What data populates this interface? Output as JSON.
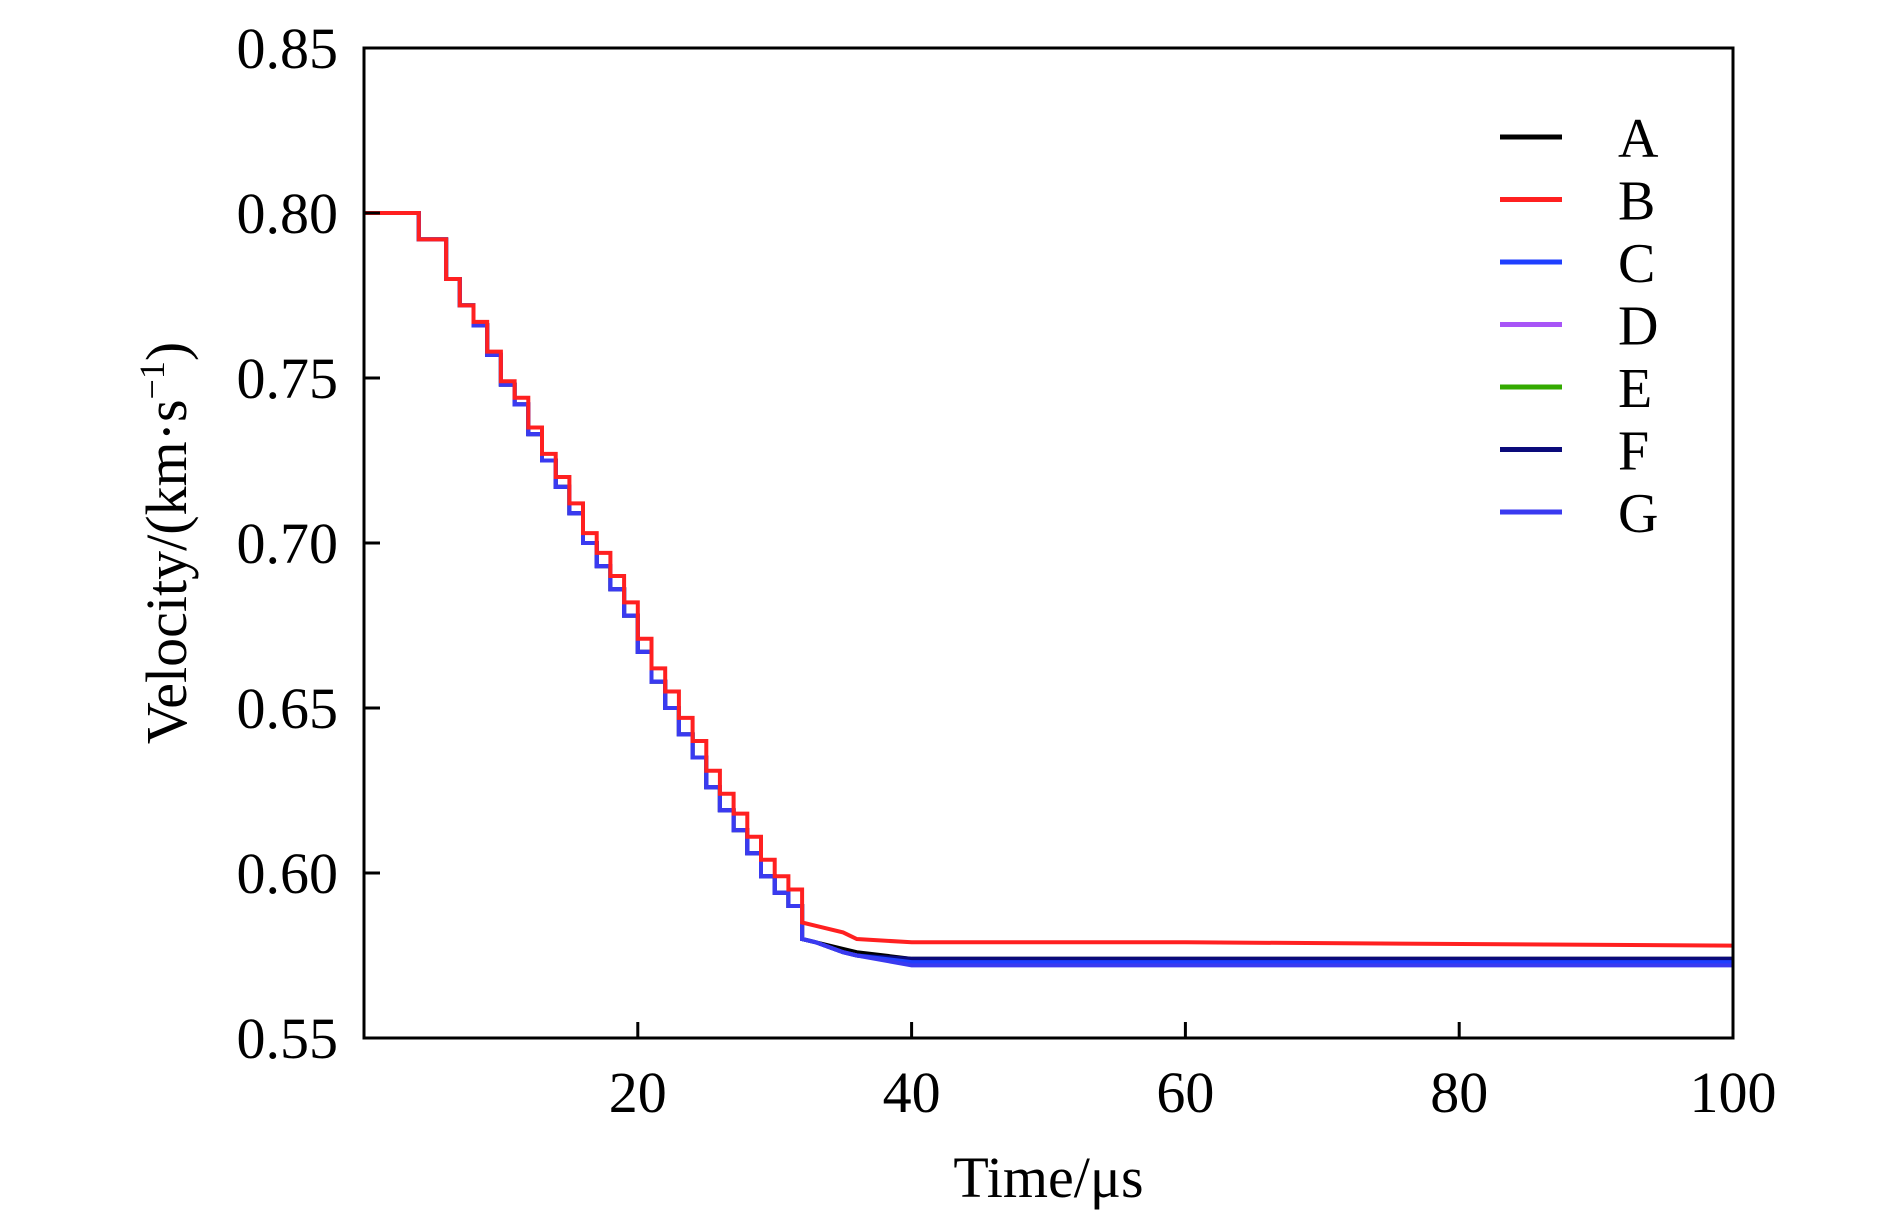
{
  "chart_data": {
    "type": "line",
    "title": "",
    "xlabel": "Time/μs",
    "ylabel": "Velocity/(km·s",
    "ylabel_superscript": "−1",
    "ylabel_close": ")",
    "xlim": [
      0,
      100
    ],
    "ylim": [
      0.55,
      0.85
    ],
    "xticks": [
      20,
      40,
      60,
      80,
      100
    ],
    "xtick_labels": [
      "20",
      "40",
      "60",
      "80",
      "100"
    ],
    "yticks": [
      0.55,
      0.6,
      0.65,
      0.7,
      0.75,
      0.8,
      0.85
    ],
    "ytick_labels": [
      "0.55",
      "0.60",
      "0.65",
      "0.70",
      "0.75",
      "0.80",
      "0.85"
    ],
    "grid": false,
    "legend_position": "top-right",
    "series": [
      {
        "name": "A",
        "color": "#000000",
        "x": [
          0,
          4,
          4,
          6,
          6,
          7,
          7,
          8,
          8,
          9,
          9,
          10,
          10,
          11,
          11,
          12,
          12,
          13,
          13,
          14,
          14,
          15,
          15,
          16,
          16,
          17,
          17,
          18,
          18,
          19,
          19,
          20,
          20,
          21,
          21,
          22,
          22,
          23,
          23,
          24,
          24,
          25,
          25,
          26,
          26,
          27,
          27,
          28,
          28,
          29,
          29,
          30,
          30,
          31,
          31,
          32,
          32,
          33,
          35,
          36,
          40,
          60,
          100
        ],
        "y": [
          0.8,
          0.8,
          0.792,
          0.792,
          0.78,
          0.78,
          0.772,
          0.772,
          0.766,
          0.766,
          0.757,
          0.757,
          0.748,
          0.748,
          0.742,
          0.742,
          0.733,
          0.733,
          0.725,
          0.725,
          0.717,
          0.717,
          0.709,
          0.709,
          0.7,
          0.7,
          0.693,
          0.693,
          0.686,
          0.686,
          0.678,
          0.678,
          0.667,
          0.667,
          0.658,
          0.658,
          0.65,
          0.65,
          0.642,
          0.642,
          0.635,
          0.635,
          0.626,
          0.626,
          0.619,
          0.619,
          0.613,
          0.613,
          0.606,
          0.606,
          0.599,
          0.599,
          0.594,
          0.594,
          0.59,
          0.59,
          0.58,
          0.579,
          0.577,
          0.576,
          0.574,
          0.574,
          0.574
        ]
      },
      {
        "name": "B",
        "color": "#ff2020",
        "x": [
          0,
          4,
          4,
          6,
          6,
          7,
          7,
          8,
          8,
          9,
          9,
          10,
          10,
          11,
          11,
          12,
          12,
          13,
          13,
          14,
          14,
          15,
          15,
          16,
          16,
          17,
          17,
          18,
          18,
          19,
          19,
          20,
          20,
          21,
          21,
          22,
          22,
          23,
          23,
          24,
          24,
          25,
          25,
          26,
          26,
          27,
          27,
          28,
          28,
          29,
          29,
          30,
          30,
          31,
          31,
          32,
          32,
          33,
          35,
          36,
          40,
          60,
          100
        ],
        "y": [
          0.8,
          0.8,
          0.792,
          0.792,
          0.78,
          0.78,
          0.772,
          0.772,
          0.767,
          0.767,
          0.758,
          0.758,
          0.749,
          0.749,
          0.744,
          0.744,
          0.735,
          0.735,
          0.727,
          0.727,
          0.72,
          0.72,
          0.712,
          0.712,
          0.703,
          0.703,
          0.697,
          0.697,
          0.69,
          0.69,
          0.682,
          0.682,
          0.671,
          0.671,
          0.662,
          0.662,
          0.655,
          0.655,
          0.647,
          0.647,
          0.64,
          0.64,
          0.631,
          0.631,
          0.624,
          0.624,
          0.618,
          0.618,
          0.611,
          0.611,
          0.604,
          0.604,
          0.599,
          0.599,
          0.595,
          0.595,
          0.585,
          0.584,
          0.582,
          0.58,
          0.579,
          0.579,
          0.578
        ]
      },
      {
        "name": "C",
        "color": "#1f3fff",
        "x": [
          0,
          4,
          4,
          6,
          6,
          7,
          7,
          8,
          8,
          9,
          9,
          10,
          10,
          11,
          11,
          12,
          12,
          13,
          13,
          14,
          14,
          15,
          15,
          16,
          16,
          17,
          17,
          18,
          18,
          19,
          19,
          20,
          20,
          21,
          21,
          22,
          22,
          23,
          23,
          24,
          24,
          25,
          25,
          26,
          26,
          27,
          27,
          28,
          28,
          29,
          29,
          30,
          30,
          31,
          31,
          32,
          32,
          33,
          35,
          36,
          40,
          60,
          100
        ],
        "y": [
          0.8,
          0.8,
          0.792,
          0.792,
          0.78,
          0.78,
          0.772,
          0.772,
          0.766,
          0.766,
          0.757,
          0.757,
          0.748,
          0.748,
          0.742,
          0.742,
          0.733,
          0.733,
          0.725,
          0.725,
          0.717,
          0.717,
          0.709,
          0.709,
          0.7,
          0.7,
          0.693,
          0.693,
          0.686,
          0.686,
          0.678,
          0.678,
          0.667,
          0.667,
          0.658,
          0.658,
          0.65,
          0.65,
          0.642,
          0.642,
          0.635,
          0.635,
          0.626,
          0.626,
          0.619,
          0.619,
          0.613,
          0.613,
          0.606,
          0.606,
          0.599,
          0.599,
          0.594,
          0.594,
          0.59,
          0.59,
          0.58,
          0.579,
          0.576,
          0.575,
          0.573,
          0.573,
          0.573
        ]
      },
      {
        "name": "D",
        "color": "#a855f7",
        "x": [
          0,
          4,
          4,
          6,
          6,
          7,
          7,
          8,
          8,
          9,
          9,
          10,
          10,
          11,
          11,
          12,
          12,
          13,
          13,
          14,
          14,
          15,
          15,
          16,
          16,
          17,
          17,
          18,
          18,
          19,
          19,
          20,
          20,
          21,
          21,
          22,
          22,
          23,
          23,
          24,
          24,
          25,
          25,
          26,
          26,
          27,
          27,
          28,
          28,
          29,
          29,
          30,
          30,
          31,
          31,
          32,
          32,
          33,
          35,
          36,
          40,
          60,
          100
        ],
        "y": [
          0.8,
          0.8,
          0.792,
          0.792,
          0.78,
          0.78,
          0.772,
          0.772,
          0.766,
          0.766,
          0.757,
          0.757,
          0.748,
          0.748,
          0.742,
          0.742,
          0.733,
          0.733,
          0.725,
          0.725,
          0.717,
          0.717,
          0.709,
          0.709,
          0.7,
          0.7,
          0.693,
          0.693,
          0.686,
          0.686,
          0.678,
          0.678,
          0.667,
          0.667,
          0.658,
          0.658,
          0.65,
          0.65,
          0.642,
          0.642,
          0.635,
          0.635,
          0.626,
          0.626,
          0.619,
          0.619,
          0.613,
          0.613,
          0.606,
          0.606,
          0.599,
          0.599,
          0.594,
          0.594,
          0.59,
          0.59,
          0.58,
          0.579,
          0.576,
          0.575,
          0.573,
          0.573,
          0.573
        ]
      },
      {
        "name": "E",
        "color": "#33aa00",
        "x": [
          0,
          4,
          4,
          6,
          6,
          7,
          7,
          8,
          8,
          9,
          9,
          10,
          10,
          11,
          11,
          12,
          12,
          13,
          13,
          14,
          14,
          15,
          15,
          16,
          16,
          17,
          17,
          18,
          18,
          19,
          19,
          20,
          20,
          21,
          21,
          22,
          22,
          23,
          23,
          24,
          24,
          25,
          25,
          26,
          26,
          27,
          27,
          28,
          28,
          29,
          29,
          30,
          30,
          31,
          31,
          32,
          32,
          33,
          35,
          36,
          40,
          60,
          100
        ],
        "y": [
          0.8,
          0.8,
          0.792,
          0.792,
          0.78,
          0.78,
          0.772,
          0.772,
          0.766,
          0.766,
          0.757,
          0.757,
          0.748,
          0.748,
          0.742,
          0.742,
          0.733,
          0.733,
          0.725,
          0.725,
          0.717,
          0.717,
          0.709,
          0.709,
          0.7,
          0.7,
          0.693,
          0.693,
          0.686,
          0.686,
          0.678,
          0.678,
          0.667,
          0.667,
          0.658,
          0.658,
          0.65,
          0.65,
          0.642,
          0.642,
          0.635,
          0.635,
          0.626,
          0.626,
          0.619,
          0.619,
          0.613,
          0.613,
          0.606,
          0.606,
          0.599,
          0.599,
          0.594,
          0.594,
          0.59,
          0.59,
          0.58,
          0.579,
          0.576,
          0.575,
          0.573,
          0.573,
          0.573
        ]
      },
      {
        "name": "F",
        "color": "#0a0a7a",
        "x": [
          0,
          4,
          4,
          6,
          6,
          7,
          7,
          8,
          8,
          9,
          9,
          10,
          10,
          11,
          11,
          12,
          12,
          13,
          13,
          14,
          14,
          15,
          15,
          16,
          16,
          17,
          17,
          18,
          18,
          19,
          19,
          20,
          20,
          21,
          21,
          22,
          22,
          23,
          23,
          24,
          24,
          25,
          25,
          26,
          26,
          27,
          27,
          28,
          28,
          29,
          29,
          30,
          30,
          31,
          31,
          32,
          32,
          33,
          35,
          36,
          40,
          60,
          100
        ],
        "y": [
          0.8,
          0.8,
          0.792,
          0.792,
          0.78,
          0.78,
          0.772,
          0.772,
          0.766,
          0.766,
          0.757,
          0.757,
          0.748,
          0.748,
          0.742,
          0.742,
          0.733,
          0.733,
          0.725,
          0.725,
          0.717,
          0.717,
          0.709,
          0.709,
          0.7,
          0.7,
          0.693,
          0.693,
          0.686,
          0.686,
          0.678,
          0.678,
          0.667,
          0.667,
          0.658,
          0.658,
          0.65,
          0.65,
          0.642,
          0.642,
          0.635,
          0.635,
          0.626,
          0.626,
          0.619,
          0.619,
          0.613,
          0.613,
          0.606,
          0.606,
          0.599,
          0.599,
          0.594,
          0.594,
          0.59,
          0.59,
          0.58,
          0.579,
          0.576,
          0.575,
          0.574,
          0.574,
          0.574
        ]
      },
      {
        "name": "G",
        "color": "#3a3af0",
        "x": [
          0,
          4,
          4,
          6,
          6,
          7,
          7,
          8,
          8,
          9,
          9,
          10,
          10,
          11,
          11,
          12,
          12,
          13,
          13,
          14,
          14,
          15,
          15,
          16,
          16,
          17,
          17,
          18,
          18,
          19,
          19,
          20,
          20,
          21,
          21,
          22,
          22,
          23,
          23,
          24,
          24,
          25,
          25,
          26,
          26,
          27,
          27,
          28,
          28,
          29,
          29,
          30,
          30,
          31,
          31,
          32,
          32,
          33,
          35,
          36,
          40,
          60,
          100
        ],
        "y": [
          0.8,
          0.8,
          0.792,
          0.792,
          0.78,
          0.78,
          0.772,
          0.772,
          0.766,
          0.766,
          0.757,
          0.757,
          0.748,
          0.748,
          0.742,
          0.742,
          0.733,
          0.733,
          0.725,
          0.725,
          0.717,
          0.717,
          0.709,
          0.709,
          0.7,
          0.7,
          0.693,
          0.693,
          0.686,
          0.686,
          0.678,
          0.678,
          0.667,
          0.667,
          0.658,
          0.658,
          0.65,
          0.65,
          0.642,
          0.642,
          0.635,
          0.635,
          0.626,
          0.626,
          0.619,
          0.619,
          0.613,
          0.613,
          0.606,
          0.606,
          0.599,
          0.599,
          0.594,
          0.594,
          0.59,
          0.59,
          0.58,
          0.579,
          0.576,
          0.575,
          0.572,
          0.572,
          0.572
        ]
      }
    ]
  }
}
